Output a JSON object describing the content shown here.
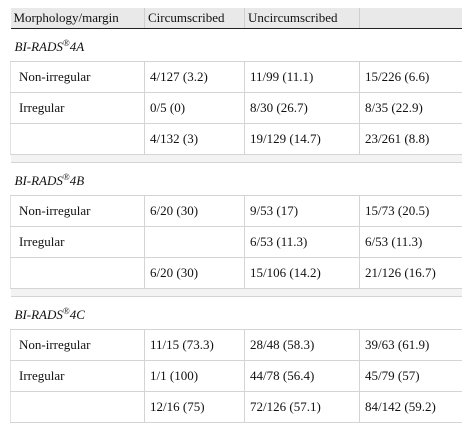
{
  "header": {
    "col1": "Morphology/margin",
    "col2": "Circumscribed",
    "col3": "Uncircumscribed",
    "col4": ""
  },
  "sections": [
    {
      "title_prefix": "BI-RADS",
      "title_sup": "®",
      "title_suffix": "4A",
      "rows": [
        [
          "Non-irregular",
          "4/127 (3.2)",
          "11/99 (11.1)",
          "15/226 (6.6)"
        ],
        [
          "Irregular",
          "0/5 (0)",
          "8/30 (26.7)",
          "8/35 (22.9)"
        ],
        [
          "",
          "4/132 (3)",
          "19/129 (14.7)",
          "23/261 (8.8)"
        ]
      ]
    },
    {
      "title_prefix": "BI-RADS",
      "title_sup": "®",
      "title_suffix": "4B",
      "rows": [
        [
          "Non-irregular",
          "6/20 (30)",
          "9/53 (17)",
          "15/73 (20.5)"
        ],
        [
          "Irregular",
          "",
          "6/53 (11.3)",
          "6/53 (11.3)"
        ],
        [
          "",
          "6/20 (30)",
          "15/106 (14.2)",
          "21/126 (16.7)"
        ]
      ]
    },
    {
      "title_prefix": "BI-RADS",
      "title_sup": "®",
      "title_suffix": "4C",
      "rows": [
        [
          "Non-irregular",
          "11/15 (73.3)",
          "28/48 (58.3)",
          "39/63 (61.9)"
        ],
        [
          "Irregular",
          "1/1 (100)",
          "44/78 (56.4)",
          "45/79 (57)"
        ],
        [
          "",
          "12/16 (75)",
          "72/126 (57.1)",
          "84/142 (59.2)"
        ]
      ]
    }
  ]
}
